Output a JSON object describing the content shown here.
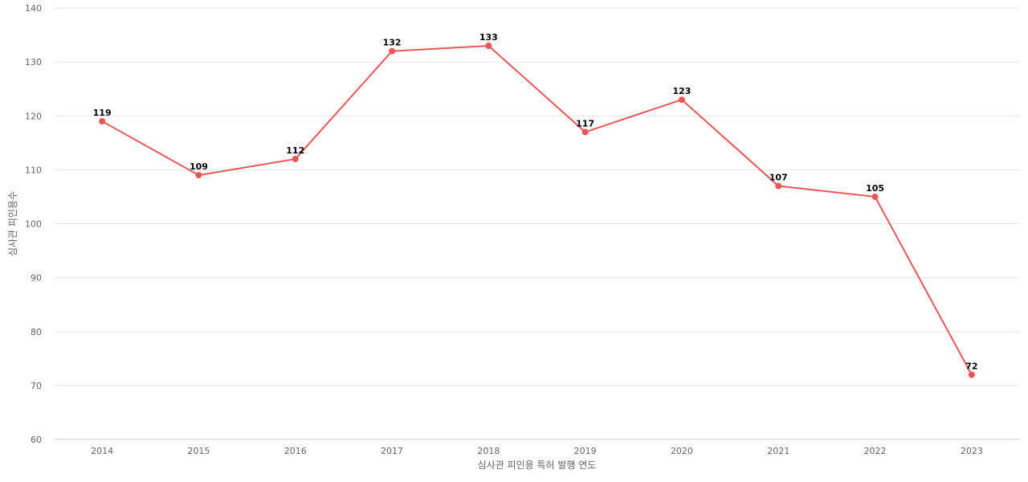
{
  "chart_data": {
    "type": "line",
    "title": "",
    "xlabel": "심사관 피인용 특허 발행 연도",
    "ylabel": "심사관 피인용수",
    "categories": [
      "2014",
      "2015",
      "2016",
      "2017",
      "2018",
      "2019",
      "2020",
      "2021",
      "2022",
      "2023"
    ],
    "series": [
      {
        "values": [
          119,
          109,
          112,
          132,
          133,
          117,
          123,
          107,
          105,
          72
        ],
        "color": "#eb5757"
      }
    ],
    "ylim": [
      60,
      140
    ],
    "yticks": [
      60,
      70,
      80,
      90,
      100,
      110,
      120,
      130,
      140
    ],
    "grid": true,
    "legend": "none",
    "data_labels": true
  }
}
